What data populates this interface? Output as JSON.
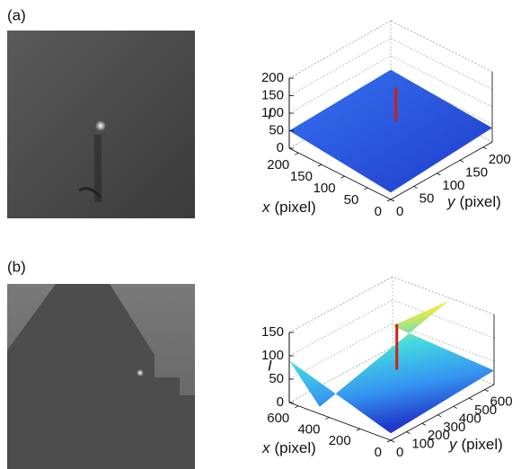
{
  "panels": [
    {
      "label": "(a)",
      "z_label": "I",
      "x_label": {
        "var": "x",
        "unit": "(pixel)"
      },
      "y_label": {
        "var": "y",
        "unit": "(pixel)"
      },
      "xlim": [
        0,
        220
      ],
      "ylim": [
        0,
        220
      ],
      "zlim": [
        0,
        200
      ],
      "xticks": [
        0,
        50,
        100,
        150,
        200
      ],
      "yticks": [
        0,
        50,
        100,
        150,
        200
      ],
      "zticks": [
        0,
        50,
        100,
        150,
        200
      ]
    },
    {
      "label": "(b)",
      "z_label": "I",
      "x_label": {
        "var": "x",
        "unit": "(pixel)"
      },
      "y_label": {
        "var": "y",
        "unit": "(pixel)"
      },
      "xlim": [
        0,
        660
      ],
      "ylim": [
        0,
        660
      ],
      "zlim": [
        0,
        150
      ],
      "xticks": [
        0,
        200,
        400,
        600
      ],
      "yticks": [
        0,
        100,
        200,
        300,
        400,
        500,
        600
      ],
      "zticks": [
        0,
        50,
        100,
        150
      ]
    }
  ]
}
